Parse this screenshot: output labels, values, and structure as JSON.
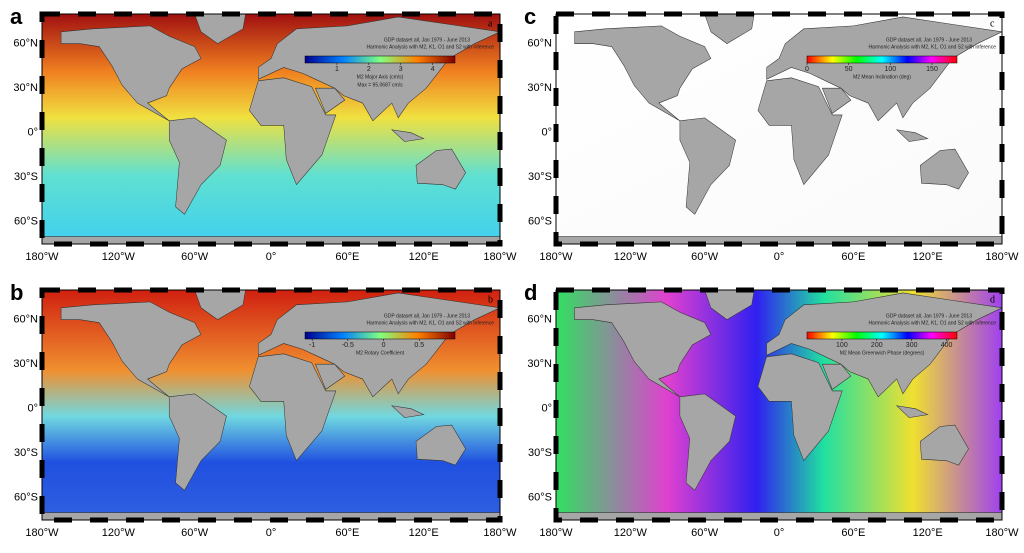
{
  "lat_labels": [
    "60°N",
    "30°N",
    "0°",
    "30°S",
    "60°S"
  ],
  "lon_labels": [
    "180°W",
    "120°W",
    "60°W",
    "0°",
    "60°E",
    "120°E",
    "180°W"
  ],
  "panels": [
    {
      "letter": "a",
      "source": "GDP dataset all, Jan 1979 - June 2013",
      "method": "Harmonic Analysis with M2, K1, O1 and S2 with inference",
      "colorbar": {
        "range": [
          0,
          4.7
        ],
        "ticks": [
          1,
          2,
          3,
          4
        ],
        "label": "M2 Major Axis (cm/s)"
      },
      "note": "Max = 95.0687 cm/s"
    },
    {
      "letter": "b",
      "source": "GDP dataset all, Jan 1979 - June 2013",
      "method": "Harmonic Analysis with M2, K1, O1 and S2 with inference",
      "colorbar": {
        "range": [
          -1.1,
          1
        ],
        "ticks": [
          -1,
          -0.5,
          0,
          0.5
        ],
        "label": "M2 Rotary Coefficient"
      }
    },
    {
      "letter": "c",
      "source": "GDP dataset all, Jan 1979 - June 2013",
      "method": "Harmonic Analysis with M2, K1, O1 and S2 with inference",
      "colorbar": {
        "range": [
          0,
          180
        ],
        "ticks": [
          0,
          50,
          100,
          150
        ],
        "label": "M2 Mean Inclination (deg)"
      }
    },
    {
      "letter": "d",
      "source": "GDP dataset all, Jan 1979 - June 2013",
      "method": "Harmonic Analysis with M2, K1, O1 and S2 with inference",
      "colorbar": {
        "range": [
          0,
          430
        ],
        "ticks": [
          100,
          200,
          300,
          400
        ],
        "label": "M2 Mean Greenwich Phase (degrees)"
      }
    }
  ]
}
